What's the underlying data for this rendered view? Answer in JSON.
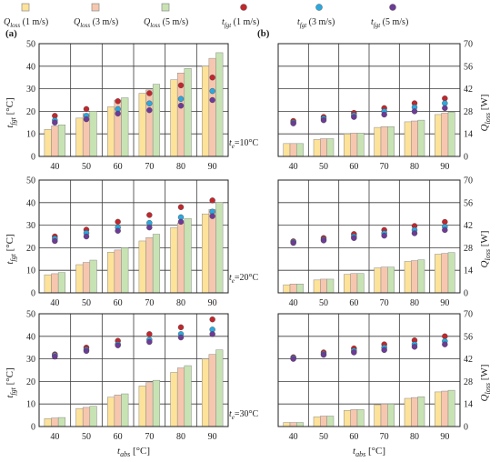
{
  "colors": {
    "q1": "#fde29a",
    "q3": "#f6c7ae",
    "q5": "#c8e3b3",
    "t1": "#c1272d",
    "t3": "#29a9e0",
    "t5": "#6d3b96",
    "bar_edge": "#8c8c8c",
    "grid": "#3b3b3b"
  },
  "legend": [
    {
      "kind": "square",
      "color_key": "q1",
      "label": "Qloss (1 m/s)",
      "sym": "Q",
      "sub": "loss",
      "rest": " (1 m/s)"
    },
    {
      "kind": "square",
      "color_key": "q3",
      "label": "Qloss (3 m/s)",
      "sym": "Q",
      "sub": "loss",
      "rest": " (3 m/s)"
    },
    {
      "kind": "square",
      "color_key": "q5",
      "label": "Qloss (5 m/s)",
      "sym": "Q",
      "sub": "loss",
      "rest": " (5 m/s)"
    },
    {
      "kind": "dot",
      "color_key": "t1",
      "label": "tfgt (1 m/s)",
      "sym": "t",
      "sub": "fgt",
      "rest": " (1 m/s)"
    },
    {
      "kind": "dot",
      "color_key": "t3",
      "label": "tfgt (3 m/s)",
      "sym": "t",
      "sub": "fgt",
      "rest": " (3 m/s)"
    },
    {
      "kind": "dot",
      "color_key": "t5",
      "label": "tfgt (5 m/s)",
      "sym": "t",
      "sub": "fgt",
      "rest": " (5 m/s)"
    }
  ],
  "panel_labels": [
    "(a)",
    "(b)"
  ],
  "xlabel": {
    "sym": "t",
    "sub": "abs",
    "rest": " [°C]"
  },
  "ylabel_left": {
    "sym": "t",
    "sub": "fgt",
    "rest": " [°C]"
  },
  "ylabel_right": [
    {
      "sym": "Q",
      "sub": "loss",
      "rest": " [W]"
    },
    {
      "sym": "Q",
      "sub": "loss",
      "rest": " [W]"
    },
    {
      "sym": "Q",
      "sub": "loss",
      "rest": " [W]"
    }
  ],
  "chart_data": [
    {
      "type": "bar",
      "panel": "a",
      "row": 1,
      "categories": [
        "40",
        "50",
        "60",
        "70",
        "80",
        "90"
      ],
      "ylim": [
        0,
        50
      ],
      "yticks": [
        "0",
        "10",
        "20",
        "30",
        "40",
        "50"
      ],
      "series": [
        {
          "name": "Qloss (1 m/s)",
          "values": [
            12,
            17,
            22,
            28,
            34,
            40
          ]
        },
        {
          "name": "Qloss (3 m/s)",
          "values": [
            13.5,
            19,
            25,
            29.5,
            37,
            43.5
          ]
        },
        {
          "name": "Qloss (5 m/s)",
          "values": [
            14,
            20,
            26,
            32,
            39,
            46
          ]
        }
      ],
      "points": [
        {
          "name": "tfgt (1 m/s)",
          "values": [
            18,
            21,
            24.5,
            28,
            31.5,
            35
          ]
        },
        {
          "name": "tfgt (3 m/s)",
          "values": [
            16,
            18,
            21,
            23.5,
            25.5,
            29
          ]
        },
        {
          "name": "tfgt (5 m/s)",
          "values": [
            15,
            16.5,
            19,
            20.5,
            22.5,
            25
          ]
        }
      ]
    },
    {
      "type": "bar",
      "panel": "b",
      "row": 1,
      "annotation": "te=10°C",
      "categories": [
        "40",
        "50",
        "60",
        "70",
        "80",
        "90"
      ],
      "ylim": [
        0,
        70
      ],
      "yticks": [
        "0",
        "14",
        "28",
        "42",
        "56",
        "70"
      ],
      "series": [
        {
          "name": "Qloss (1 m/s)",
          "values": [
            8,
            10.5,
            14,
            18,
            21.5,
            26
          ]
        },
        {
          "name": "Qloss (3 m/s)",
          "values": [
            8,
            11,
            14.5,
            18.5,
            22,
            27
          ]
        },
        {
          "name": "Qloss (5 m/s)",
          "values": [
            8,
            11,
            14.5,
            18.5,
            22.5,
            27.5
          ]
        }
      ],
      "points": [
        {
          "name": "tfgt (1 m/s)",
          "values": [
            22,
            24.5,
            27,
            30,
            33,
            36
          ]
        },
        {
          "name": "tfgt (3 m/s)",
          "values": [
            21,
            23.5,
            25.5,
            28,
            30.5,
            33
          ]
        },
        {
          "name": "tfgt (5 m/s)",
          "values": [
            20.5,
            22.5,
            24.5,
            26,
            28,
            30
          ]
        }
      ]
    },
    {
      "type": "bar",
      "panel": "a",
      "row": 2,
      "categories": [
        "40",
        "50",
        "60",
        "70",
        "80",
        "90"
      ],
      "ylim": [
        0,
        50
      ],
      "yticks": [
        "0",
        "10",
        "20",
        "30",
        "40",
        "50"
      ],
      "series": [
        {
          "name": "Qloss (1 m/s)",
          "values": [
            8,
            12.5,
            18,
            23,
            29,
            35
          ]
        },
        {
          "name": "Qloss (3 m/s)",
          "values": [
            8.5,
            13.5,
            19,
            24.5,
            31,
            37
          ]
        },
        {
          "name": "Qloss (5 m/s)",
          "values": [
            9,
            14.5,
            20,
            26,
            33,
            40
          ]
        }
      ],
      "points": [
        {
          "name": "tfgt (1 m/s)",
          "values": [
            25,
            28,
            31.5,
            34.5,
            38,
            41
          ]
        },
        {
          "name": "tfgt (3 m/s)",
          "values": [
            24,
            26.5,
            29,
            31,
            33.5,
            36
          ]
        },
        {
          "name": "tfgt (5 m/s)",
          "values": [
            23,
            25,
            27.5,
            29,
            31.5,
            34
          ]
        }
      ]
    },
    {
      "type": "bar",
      "panel": "b",
      "row": 2,
      "annotation": "te=20°C",
      "categories": [
        "40",
        "50",
        "60",
        "70",
        "80",
        "90"
      ],
      "ylim": [
        0,
        70
      ],
      "yticks": [
        "0",
        "14",
        "28",
        "42",
        "56",
        "70"
      ],
      "series": [
        {
          "name": "Qloss (1 m/s)",
          "values": [
            5,
            8,
            11.5,
            15.5,
            19.5,
            24
          ]
        },
        {
          "name": "Qloss (3 m/s)",
          "values": [
            5.5,
            8.5,
            12,
            16,
            20,
            24.5
          ]
        },
        {
          "name": "Qloss (5 m/s)",
          "values": [
            5.5,
            8.5,
            12,
            16,
            20.5,
            25
          ]
        }
      ],
      "points": [
        {
          "name": "tfgt (1 m/s)",
          "values": [
            32,
            34,
            36.5,
            39,
            41.5,
            44
          ]
        },
        {
          "name": "tfgt (3 m/s)",
          "values": [
            31.5,
            33,
            35,
            37,
            39,
            41
          ]
        },
        {
          "name": "tfgt (5 m/s)",
          "values": [
            31,
            32.5,
            34,
            35.5,
            37,
            39
          ]
        }
      ]
    },
    {
      "type": "bar",
      "panel": "a",
      "row": 3,
      "categories": [
        "40",
        "50",
        "60",
        "70",
        "80",
        "90"
      ],
      "ylim": [
        0,
        50
      ],
      "yticks": [
        "0",
        "10",
        "20",
        "30",
        "40",
        "50"
      ],
      "series": [
        {
          "name": "Qloss (1 m/s)",
          "values": [
            3.5,
            8,
            13,
            18,
            24,
            30
          ]
        },
        {
          "name": "Qloss (3 m/s)",
          "values": [
            3.8,
            8.5,
            14,
            19.5,
            26,
            32
          ]
        },
        {
          "name": "Qloss (5 m/s)",
          "values": [
            4,
            9,
            14.5,
            20.5,
            27,
            34
          ]
        }
      ],
      "points": [
        {
          "name": "tfgt (1 m/s)",
          "values": [
            32,
            35,
            38,
            41,
            44,
            47.5
          ]
        },
        {
          "name": "tfgt (3 m/s)",
          "values": [
            31.5,
            34,
            36.5,
            38.5,
            41,
            43
          ]
        },
        {
          "name": "tfgt (5 m/s)",
          "values": [
            31,
            33.5,
            36,
            37.5,
            39.5,
            41
          ]
        }
      ]
    },
    {
      "type": "bar",
      "panel": "b",
      "row": 3,
      "annotation": "te=30°C",
      "categories": [
        "40",
        "50",
        "60",
        "70",
        "80",
        "90"
      ],
      "ylim": [
        0,
        70
      ],
      "yticks": [
        "0",
        "14",
        "28",
        "42",
        "56",
        "70"
      ],
      "series": [
        {
          "name": "Qloss (1 m/s)",
          "values": [
            2.5,
            6,
            10,
            13.5,
            17.5,
            21.5
          ]
        },
        {
          "name": "Qloss (3 m/s)",
          "values": [
            2.5,
            6.5,
            10.5,
            14,
            18,
            22
          ]
        },
        {
          "name": "Qloss (5 m/s)",
          "values": [
            2.5,
            6.5,
            10.5,
            14,
            18.5,
            22.5
          ]
        }
      ],
      "points": [
        {
          "name": "tfgt (1 m/s)",
          "values": [
            43,
            46,
            48.5,
            51,
            53.5,
            56
          ]
        },
        {
          "name": "tfgt (3 m/s)",
          "values": [
            42.5,
            45,
            47,
            49,
            51,
            53
          ]
        },
        {
          "name": "tfgt (5 m/s)",
          "values": [
            42,
            44.5,
            46,
            47.5,
            49.5,
            51
          ]
        }
      ]
    }
  ],
  "annotations": [
    {
      "sym": "t",
      "sub": "e",
      "rest": "=10°C"
    },
    {
      "sym": "t",
      "sub": "e",
      "rest": "=20°C"
    },
    {
      "sym": "t",
      "sub": "e",
      "rest": "=30°C"
    }
  ]
}
